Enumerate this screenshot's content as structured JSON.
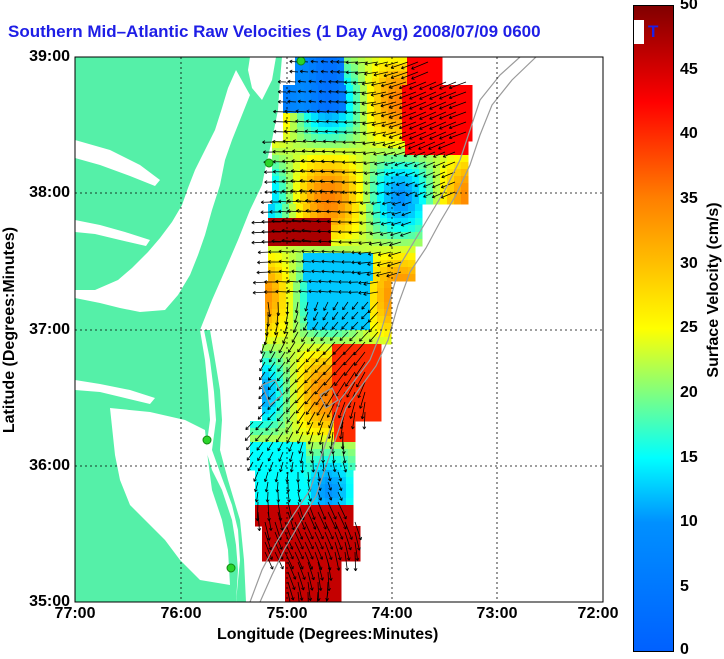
{
  "title": "Southern Mid–Atlantic Raw Velocities (1 Day Avg) 2008/07/09 0600",
  "title_trailing": "T",
  "x_axis": {
    "label": "Longitude (Degrees:Minutes)",
    "ticks": [
      "77:00",
      "76:00",
      "75:00",
      "74:00",
      "73:00",
      "72:00"
    ]
  },
  "y_axis": {
    "label": "Latitude (Degrees:Minutes)",
    "ticks": [
      "39:00",
      "38:00",
      "37:00",
      "36:00",
      "35:00"
    ]
  },
  "colorbar": {
    "label": "Surface Velocity (cm/s)",
    "ticks": [
      "50",
      "45",
      "40",
      "35",
      "30",
      "25",
      "20",
      "15",
      "10",
      "5",
      "0"
    ],
    "min": 0,
    "max": 50,
    "colors": [
      "#0000ff",
      "#00ffff",
      "#ffff00",
      "#ff0000",
      "#800000"
    ]
  },
  "colors": {
    "land": "#55f0a8",
    "grid": "#000000",
    "bathymetry": "#9a9a9a",
    "station": "#2bd42b"
  }
}
